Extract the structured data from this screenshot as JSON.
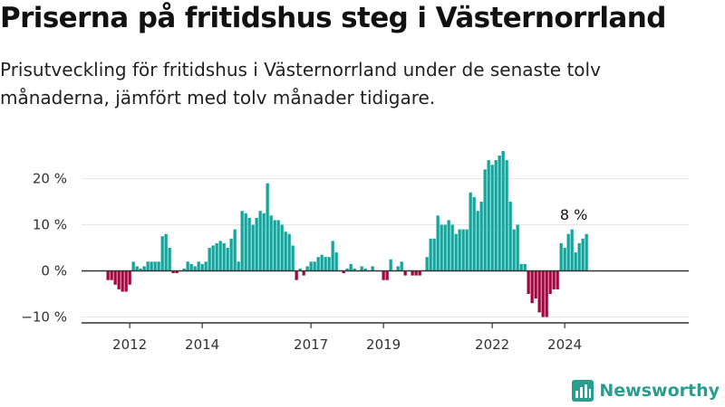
{
  "header": {
    "title": "Priserna på fritidshus steg i Västernorrland",
    "subtitle": "Prisutveckling för fritidshus i Västernorrland under de senaste tolv månaderna, jämfört med tolv månader tidigare."
  },
  "brand": {
    "name": "Newsworthy",
    "icon": "newsworthy-logo-icon"
  },
  "chart_data": {
    "type": "bar",
    "title": "",
    "xlabel": "",
    "ylabel": "",
    "ylim": [
      -11,
      24
    ],
    "y_ticks": [
      {
        "value": 20,
        "label": "20 %"
      },
      {
        "value": 10,
        "label": "10 %"
      },
      {
        "value": 0,
        "label": "0 %"
      },
      {
        "value": -10,
        "label": "−10 %"
      }
    ],
    "x_ticks": [
      {
        "index": 6,
        "label": "2012"
      },
      {
        "index": 26,
        "label": "2014"
      },
      {
        "index": 56,
        "label": "2017"
      },
      {
        "index": 76,
        "label": "2019"
      },
      {
        "index": 106,
        "label": "2022"
      },
      {
        "index": 126,
        "label": "2024"
      }
    ],
    "grid": true,
    "colors": {
      "positive": "#1aa39a",
      "negative": "#9c0b3f",
      "axis": "#333333",
      "grid": "#e6e6e6"
    },
    "annotation": {
      "label": "8 %",
      "index": 129
    },
    "values": [
      -2,
      -2,
      -3,
      -4,
      -4.5,
      -4.5,
      -3,
      2,
      1,
      0.5,
      1,
      2,
      2,
      2,
      2,
      7.5,
      8,
      5,
      -0.5,
      -0.5,
      0,
      0.5,
      2,
      1.5,
      1,
      2,
      1.5,
      2,
      5,
      5.5,
      6,
      6.5,
      6,
      5,
      7,
      9,
      2,
      13,
      12.5,
      11.5,
      10,
      11.5,
      13,
      12.5,
      19,
      12,
      11,
      11,
      10,
      8.5,
      8,
      5.5,
      -2,
      0.5,
      -1,
      1,
      2,
      2,
      3,
      3.5,
      3,
      3,
      6.5,
      4,
      0,
      -0.5,
      0.5,
      1.5,
      0.5,
      0,
      1,
      0.5,
      0,
      1,
      0,
      0,
      -2,
      -2,
      2.5,
      0,
      1,
      2,
      -1,
      0,
      -1,
      -1,
      -1,
      0,
      3,
      7,
      7,
      12,
      10,
      10,
      11,
      10,
      8,
      9,
      9,
      9,
      17,
      16,
      13,
      15,
      22,
      24,
      23,
      24,
      25,
      26,
      24,
      15,
      9,
      10,
      1.5,
      1.5,
      -5,
      -7,
      -6,
      -9,
      -10,
      -10,
      -5,
      -4,
      -4,
      6,
      5,
      8,
      9,
      4,
      6,
      7,
      8
    ]
  }
}
